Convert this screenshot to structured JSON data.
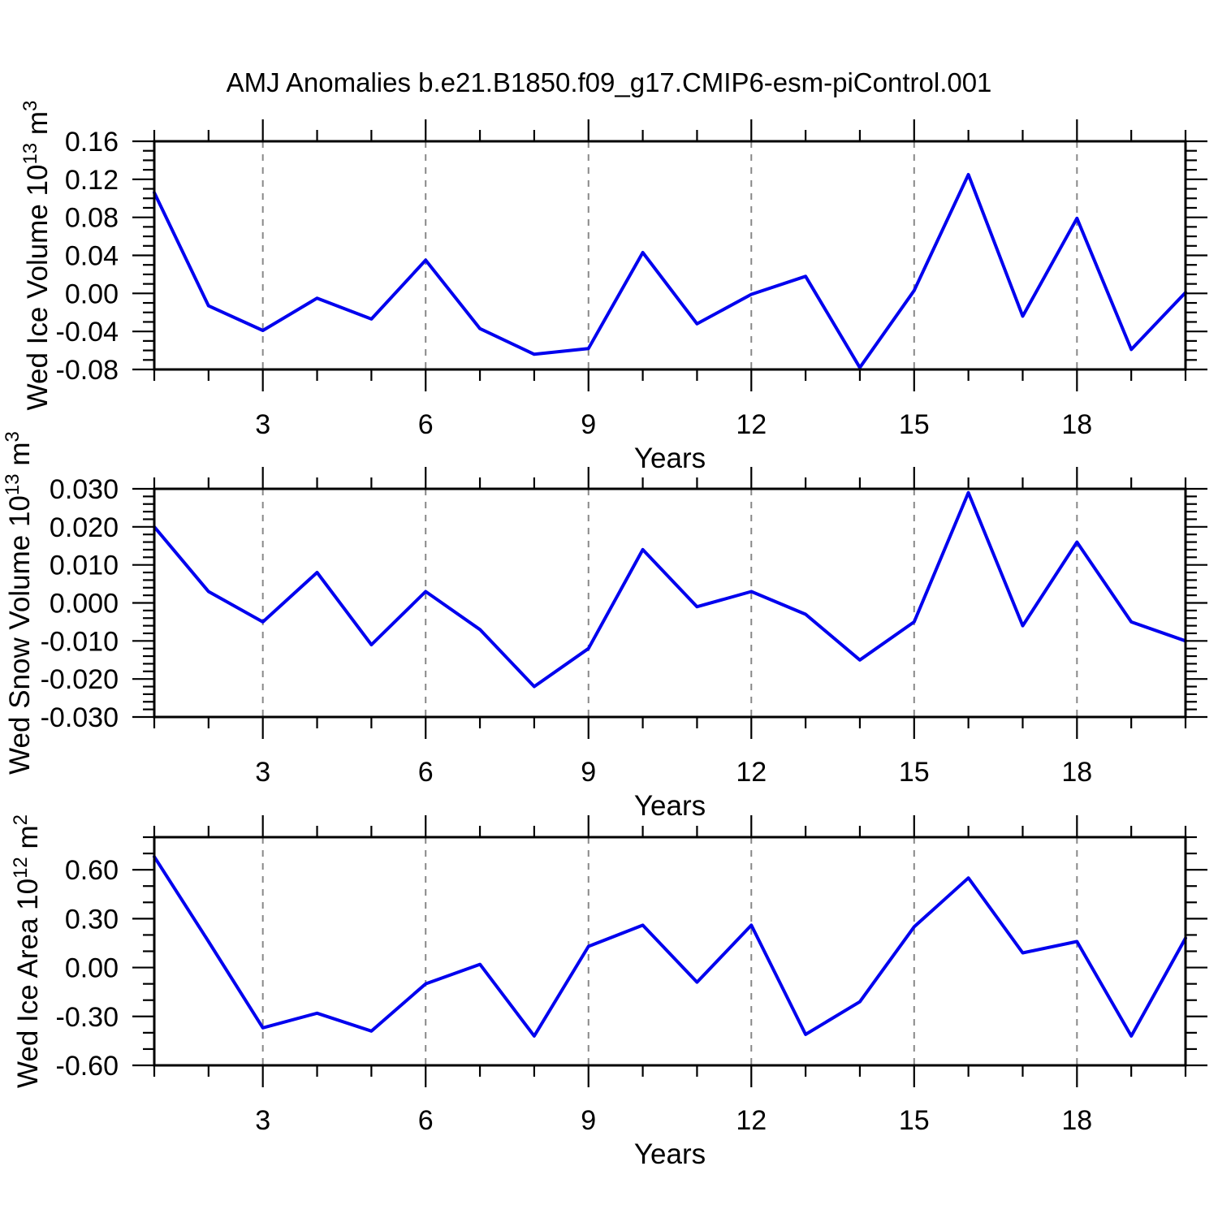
{
  "title": "AMJ Anomalies b.e21.B1850.f09_g17.CMIP6-esm-piControl.001",
  "colors": {
    "line": "#0000ee",
    "grid": "#888888",
    "axis": "#000000",
    "text": "#000000",
    "background": "#ffffff"
  },
  "chart_data": [
    {
      "type": "line",
      "name": "wed-ice-volume",
      "ylabel": "Wed Ice Volume 10^13 m^3",
      "ylabel_parts": [
        {
          "t": "Wed Ice Volume 10"
        },
        {
          "t": "13",
          "sup": true
        },
        {
          "t": " m"
        },
        {
          "t": "3",
          "sup": true
        }
      ],
      "xlabel": "Years",
      "x": [
        1,
        2,
        3,
        4,
        5,
        6,
        7,
        8,
        9,
        10,
        11,
        12,
        13,
        14,
        15,
        16,
        17,
        18,
        19,
        20
      ],
      "values": [
        0.106,
        -0.013,
        -0.039,
        -0.005,
        -0.027,
        0.035,
        -0.037,
        -0.064,
        -0.058,
        0.043,
        -0.032,
        -0.001,
        0.018,
        -0.078,
        0.003,
        0.125,
        -0.024,
        0.079,
        -0.059,
        0.001
      ],
      "xlim": [
        1,
        20
      ],
      "ylim": [
        -0.08,
        0.16
      ],
      "xticks": [
        3,
        6,
        9,
        12,
        15,
        18
      ],
      "xtick_labels": [
        "3",
        "6",
        "9",
        "12",
        "15",
        "18"
      ],
      "x_minor_step": 1,
      "yticks": [
        0.16,
        0.12,
        0.08,
        0.04,
        0.0,
        -0.04,
        -0.08
      ],
      "ytick_labels": [
        "0.16",
        "0.12",
        "0.08",
        "0.04",
        "0.00",
        "-0.04",
        "-0.08"
      ],
      "y_major_step": 0.04,
      "y_minor_step": 0.01,
      "grid": "vertical-dashed",
      "legend": "none"
    },
    {
      "type": "line",
      "name": "wed-snow-volume",
      "ylabel": "Wed Snow Volume 10^13 m^3",
      "ylabel_parts": [
        {
          "t": "Wed Snow Volume 10"
        },
        {
          "t": "13",
          "sup": true
        },
        {
          "t": " m"
        },
        {
          "t": "3",
          "sup": true
        }
      ],
      "xlabel": "Years",
      "x": [
        1,
        2,
        3,
        4,
        5,
        6,
        7,
        8,
        9,
        10,
        11,
        12,
        13,
        14,
        15,
        16,
        17,
        18,
        19,
        20
      ],
      "values": [
        0.02,
        0.003,
        -0.005,
        0.008,
        -0.011,
        0.003,
        -0.007,
        -0.022,
        -0.012,
        0.014,
        -0.001,
        0.003,
        -0.003,
        -0.015,
        -0.005,
        0.029,
        -0.006,
        0.016,
        -0.005,
        -0.01
      ],
      "xlim": [
        1,
        20
      ],
      "ylim": [
        -0.03,
        0.03
      ],
      "xticks": [
        3,
        6,
        9,
        12,
        15,
        18
      ],
      "xtick_labels": [
        "3",
        "6",
        "9",
        "12",
        "15",
        "18"
      ],
      "x_minor_step": 1,
      "yticks": [
        0.03,
        0.02,
        0.01,
        0.0,
        -0.01,
        -0.02,
        -0.03
      ],
      "ytick_labels": [
        "0.030",
        "0.020",
        "0.010",
        "0.000",
        "-0.010",
        "-0.020",
        "-0.030"
      ],
      "y_major_step": 0.01,
      "y_minor_step": 0.002,
      "grid": "vertical-dashed",
      "legend": "none"
    },
    {
      "type": "line",
      "name": "wed-ice-area",
      "ylabel": "Wed Ice Area 10^12 m^2",
      "ylabel_parts": [
        {
          "t": "Wed Ice Area 10"
        },
        {
          "t": "12",
          "sup": true
        },
        {
          "t": " m"
        },
        {
          "t": "2",
          "sup": true
        }
      ],
      "xlabel": "Years",
      "x": [
        1,
        2,
        3,
        4,
        5,
        6,
        7,
        8,
        9,
        10,
        11,
        12,
        13,
        14,
        15,
        16,
        17,
        18,
        19,
        20
      ],
      "values": [
        0.68,
        0.16,
        -0.37,
        -0.28,
        -0.39,
        -0.1,
        0.02,
        -0.42,
        0.13,
        0.26,
        -0.09,
        0.26,
        -0.41,
        -0.21,
        0.25,
        0.55,
        0.09,
        0.16,
        -0.42,
        0.18
      ],
      "xlim": [
        1,
        20
      ],
      "ylim": [
        -0.6,
        0.8
      ],
      "xticks": [
        3,
        6,
        9,
        12,
        15,
        18
      ],
      "xtick_labels": [
        "3",
        "6",
        "9",
        "12",
        "15",
        "18"
      ],
      "x_minor_step": 1,
      "yticks": [
        0.6,
        0.3,
        0.0,
        -0.3,
        -0.6
      ],
      "ytick_labels": [
        "0.60",
        "0.30",
        "0.00",
        "-0.30",
        "-0.60"
      ],
      "y_major_step": 0.3,
      "y_minor_step": 0.1,
      "grid": "vertical-dashed",
      "legend": "none"
    }
  ]
}
